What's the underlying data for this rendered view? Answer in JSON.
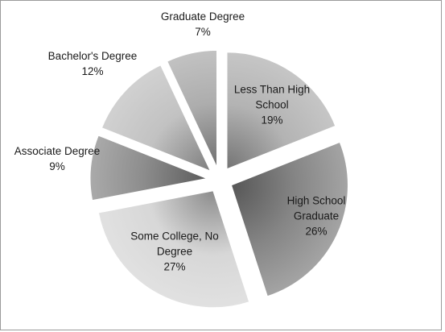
{
  "chart_data": {
    "type": "pie",
    "title": "",
    "slices": [
      {
        "label_lines": [
          "Less Than High",
          "School",
          "19%"
        ],
        "value": 19,
        "color": "#b3b3b3"
      },
      {
        "label_lines": [
          "High School",
          "Graduate",
          "26%"
        ],
        "value": 26,
        "color": "#858585"
      },
      {
        "label_lines": [
          "Some College, No",
          "Degree",
          "27%"
        ],
        "value": 27,
        "color": "#d7d7d7"
      },
      {
        "label_lines": [
          "Associate Degree",
          "9%"
        ],
        "value": 9,
        "color": "#8d8d8d"
      },
      {
        "label_lines": [
          "Bachelor's Degree",
          "12%"
        ],
        "value": 12,
        "color": "#c2c2c2"
      },
      {
        "label_lines": [
          "Graduate Degree",
          "7%"
        ],
        "value": 7,
        "color": "#adadad"
      }
    ],
    "legend": "none",
    "style": "exploded 3D-shaded pie, slices ordered clockwise starting at 12 o'clock"
  }
}
